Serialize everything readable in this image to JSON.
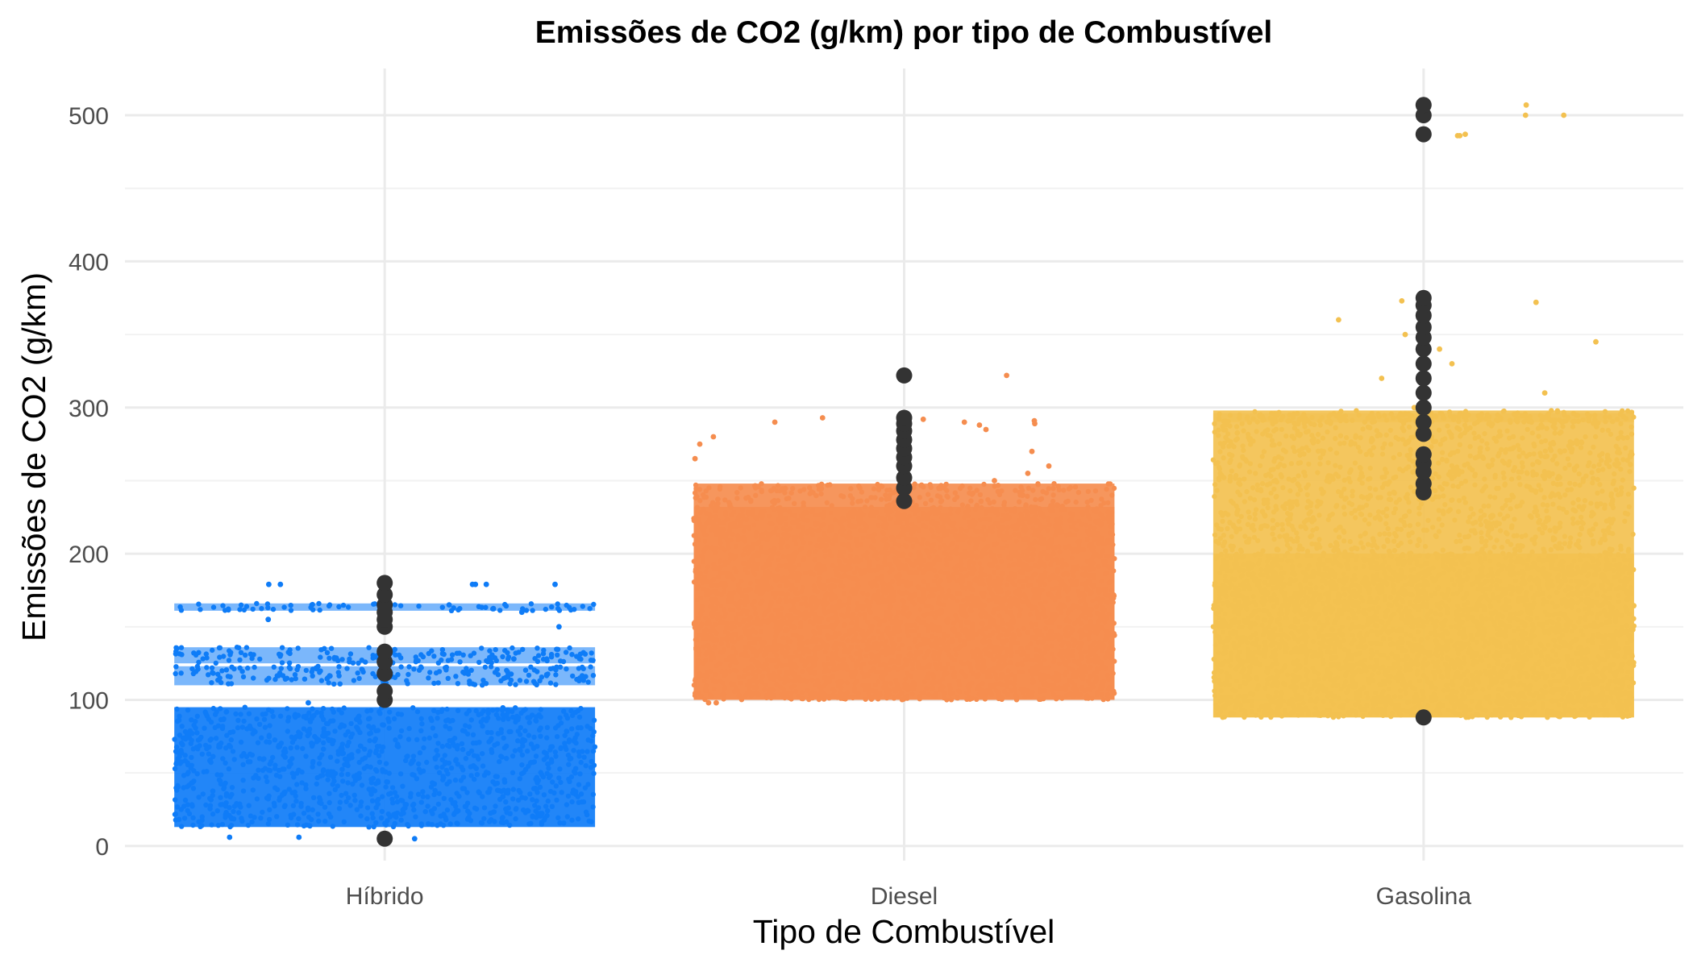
{
  "chart_data": {
    "type": "scatter",
    "title": "Emissões de CO2 (g/km) por tipo de Combustível",
    "xlabel": "Tipo de Combustível",
    "ylabel": "Emissões de CO2 (g/km)",
    "categories": [
      "Híbrido",
      "Diesel",
      "Gasolina"
    ],
    "ylim": [
      -10,
      532
    ],
    "yticks": [
      0,
      100,
      200,
      300,
      400,
      500
    ],
    "grid": true,
    "legend": "none",
    "series": [
      {
        "category": "Híbrido",
        "color": "#0F7CF7",
        "dense_bands": [
          [
            13,
            95
          ],
          [
            110,
            123
          ],
          [
            125,
            136
          ],
          [
            161,
            166
          ]
        ],
        "points": [
          5,
          6,
          6,
          98,
          120,
          128,
          150,
          155,
          160,
          165,
          179,
          179,
          179,
          179,
          179,
          179
        ],
        "outliers": [
          5,
          100,
          106,
          118,
          126,
          133,
          150,
          155,
          160,
          165,
          172,
          180
        ]
      },
      {
        "category": "Diesel",
        "color": "#F58D4F",
        "dense_bands": [
          [
            100,
            232
          ],
          [
            100,
            248
          ]
        ],
        "points": [
          98,
          98,
          250,
          255,
          260,
          265,
          270,
          275,
          280,
          285,
          288,
          289,
          290,
          290,
          291,
          292,
          293,
          322
        ],
        "outliers": [
          236,
          245,
          252,
          260,
          266,
          272,
          278,
          284,
          289,
          293,
          322
        ]
      },
      {
        "category": "Gasolina",
        "color": "#F3C150",
        "dense_bands": [
          [
            88,
            200
          ],
          [
            88,
            298
          ],
          [
            290,
            296
          ]
        ],
        "points": [
          300,
          310,
          320,
          330,
          340,
          345,
          350,
          360,
          370,
          372,
          373,
          486,
          486,
          487,
          500,
          500,
          507
        ],
        "outliers": [
          88,
          242,
          248,
          256,
          262,
          268,
          282,
          290,
          300,
          310,
          320,
          330,
          340,
          348,
          355,
          363,
          370,
          375,
          487,
          500,
          507
        ]
      }
    ]
  }
}
